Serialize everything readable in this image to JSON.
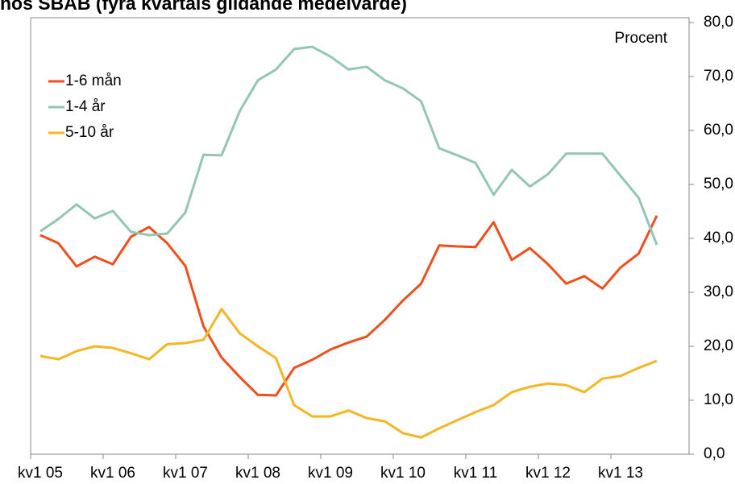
{
  "chart_data": {
    "type": "line",
    "title": "hos SBAB (fyra kvartals glidande medelvärde)",
    "y_label": "Procent",
    "categories": [
      "kv1 05",
      null,
      null,
      null,
      "kv1 06",
      null,
      null,
      null,
      "kv1 07",
      null,
      null,
      null,
      "kv1 08",
      null,
      null,
      null,
      "kv1 09",
      null,
      null,
      null,
      "kv1 10",
      null,
      null,
      null,
      "kv1 11",
      null,
      null,
      null,
      "kv1 12",
      null,
      null,
      null,
      "kv1 13",
      null,
      null
    ],
    "series": [
      {
        "name": "1-6 mån",
        "color": "#f04e1c",
        "values": [
          40.6,
          39.1,
          34.8,
          36.6,
          35.2,
          40.3,
          42.1,
          39.1,
          34.9,
          23.7,
          17.9,
          14.3,
          11.0,
          10.9,
          16.0,
          17.5,
          19.4,
          20.7,
          21.8,
          24.9,
          28.5,
          31.6,
          38.7,
          38.5,
          38.4,
          43.0,
          36.0,
          38.2,
          35.2,
          31.6,
          33.0,
          30.7,
          34.6,
          37.2,
          44.2
        ]
      },
      {
        "name": "1-4 år",
        "color": "#93c6b4",
        "values": [
          41.3,
          43.6,
          46.3,
          43.7,
          45.1,
          41.2,
          40.6,
          40.9,
          44.8,
          55.5,
          55.4,
          63.6,
          69.3,
          71.3,
          75.1,
          75.5,
          73.7,
          71.3,
          71.8,
          69.3,
          67.8,
          65.4,
          56.7,
          55.4,
          54.0,
          48.1,
          52.7,
          49.6,
          51.9,
          55.7,
          55.7,
          55.7,
          51.6,
          47.5,
          38.8
        ]
      },
      {
        "name": "5-10 år",
        "color": "#f5b625",
        "values": [
          18.2,
          17.6,
          19.1,
          20.0,
          19.7,
          18.7,
          17.6,
          20.4,
          20.6,
          21.2,
          26.9,
          22.4,
          20.0,
          17.8,
          9.1,
          7.0,
          7.0,
          8.1,
          6.7,
          6.1,
          3.9,
          3.1,
          4.8,
          6.3,
          7.8,
          9.1,
          11.5,
          12.5,
          13.1,
          12.8,
          11.5,
          14.0,
          14.5,
          16.0,
          17.3
        ]
      }
    ],
    "ylim": [
      0,
      80
    ],
    "yticks": [
      {
        "value": 0,
        "label": "0,0"
      },
      {
        "value": 10,
        "label": "10,0"
      },
      {
        "value": 20,
        "label": "20,0"
      },
      {
        "value": 30,
        "label": "30,0"
      },
      {
        "value": 40,
        "label": "40,0"
      },
      {
        "value": 50,
        "label": "50,0"
      },
      {
        "value": 60,
        "label": "60,0"
      },
      {
        "value": 70,
        "label": "70,0"
      },
      {
        "value": 80,
        "label": "80,0"
      }
    ],
    "legend": "upper left"
  }
}
